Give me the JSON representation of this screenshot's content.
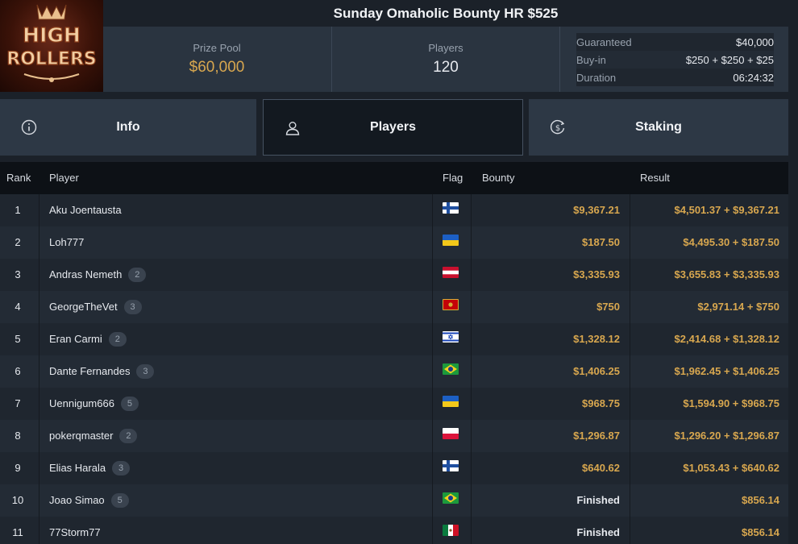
{
  "header": {
    "title": "Sunday Omaholic Bounty HR $525",
    "logo_text": "HIGH ROLLERS",
    "prize_pool_label": "Prize Pool",
    "prize_pool_value": "$60,000",
    "players_label": "Players",
    "players_value": "120",
    "guaranteed_label": "Guaranteed",
    "guaranteed_value": "$40,000",
    "buyin_label": "Buy-in",
    "buyin_value": "$250 + $250 + $25",
    "duration_label": "Duration",
    "duration_value": "06:24:32"
  },
  "tabs": {
    "info": {
      "label": "Info",
      "icon": "info-icon"
    },
    "players": {
      "label": "Players",
      "icon": "user-icon",
      "active": true
    },
    "staking": {
      "label": "Staking",
      "icon": "dollar-coin-icon"
    }
  },
  "table": {
    "columns": {
      "rank": "Rank",
      "player": "Player",
      "flag": "Flag",
      "bounty": "Bounty",
      "result": "Result"
    },
    "rows": [
      {
        "rank": "1",
        "player": "Aku Joentausta",
        "badge": "",
        "flag": "finland",
        "bounty": "$9,367.21",
        "result": "$4,501.37 + $9,367.21"
      },
      {
        "rank": "2",
        "player": "Loh777",
        "badge": "",
        "flag": "ukraine",
        "bounty": "$187.50",
        "result": "$4,495.30 + $187.50"
      },
      {
        "rank": "3",
        "player": "Andras Nemeth",
        "badge": "2",
        "flag": "austria",
        "bounty": "$3,335.93",
        "result": "$3,655.83 + $3,335.93"
      },
      {
        "rank": "4",
        "player": "GeorgeTheVet",
        "badge": "3",
        "flag": "montenegro",
        "bounty": "$750",
        "result": "$2,971.14 + $750"
      },
      {
        "rank": "5",
        "player": "Eran Carmi",
        "badge": "2",
        "flag": "israel",
        "bounty": "$1,328.12",
        "result": "$2,414.68 + $1,328.12"
      },
      {
        "rank": "6",
        "player": "Dante Fernandes",
        "badge": "3",
        "flag": "brazil",
        "bounty": "$1,406.25",
        "result": "$1,962.45 + $1,406.25"
      },
      {
        "rank": "7",
        "player": "Uennigum666",
        "badge": "5",
        "flag": "ukraine",
        "bounty": "$968.75",
        "result": "$1,594.90 + $968.75"
      },
      {
        "rank": "8",
        "player": "pokerqmaster",
        "badge": "2",
        "flag": "poland",
        "bounty": "$1,296.87",
        "result": "$1,296.20 + $1,296.87"
      },
      {
        "rank": "9",
        "player": "Elias Harala",
        "badge": "3",
        "flag": "finland",
        "bounty": "$640.62",
        "result": "$1,053.43 + $640.62"
      },
      {
        "rank": "10",
        "player": "Joao Simao",
        "badge": "5",
        "flag": "brazil",
        "bounty": "Finished",
        "result": "$856.14"
      },
      {
        "rank": "11",
        "player": "77Storm77",
        "badge": "",
        "flag": "mexico",
        "bounty": "Finished",
        "result": "$856.14"
      }
    ]
  },
  "colors": {
    "gold": "#d8a74f",
    "panel": "#2a3440",
    "background": "#1b2129"
  }
}
